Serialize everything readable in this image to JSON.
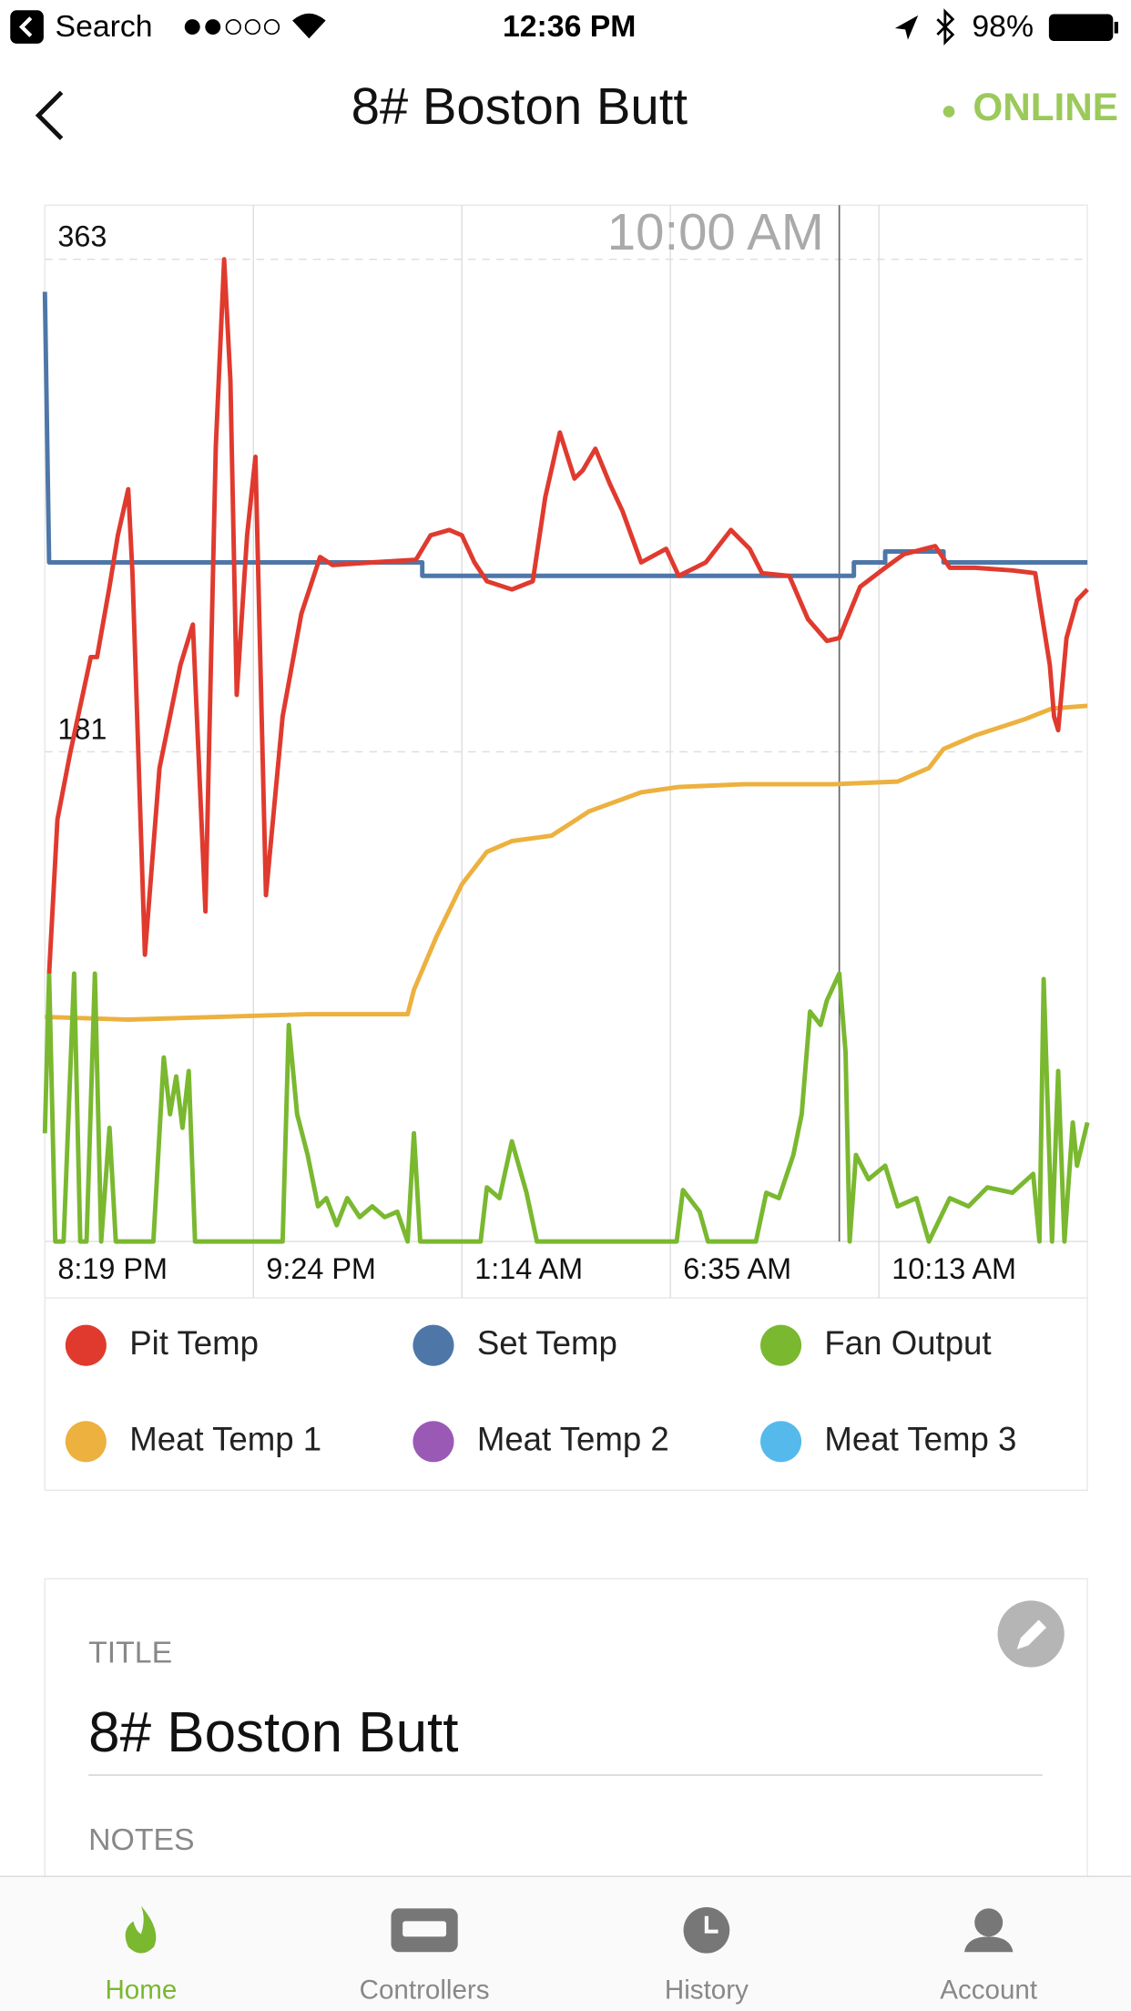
{
  "status_bar": {
    "back_app": "Search",
    "time": "12:36 PM",
    "battery": "98%"
  },
  "header": {
    "title": "8# Boston Butt",
    "status": "ONLINE"
  },
  "chart_data": {
    "type": "line",
    "xlim": [
      0,
      50
    ],
    "ylim": [
      0,
      383
    ],
    "yticks": [
      181,
      363
    ],
    "xticks": [
      {
        "value": 0,
        "label": "8:19 PM"
      },
      {
        "value": 10,
        "label": "9:24 PM"
      },
      {
        "value": 20,
        "label": "1:14 AM"
      },
      {
        "value": 30,
        "label": "6:35 AM"
      },
      {
        "value": 40,
        "label": "10:13 AM"
      }
    ],
    "grid": true,
    "cursor": {
      "x": 38.1,
      "label": "10:00 AM"
    },
    "series": [
      {
        "name": "Pit Temp",
        "color": "#e03a2f",
        "x": [
          0.2,
          0.6,
          1.2,
          2.2,
          2.5,
          3.1,
          3.5,
          4.0,
          4.2,
          4.8,
          5.5,
          6.5,
          7.1,
          7.7,
          8.2,
          8.6,
          8.9,
          9.2,
          9.7,
          10.1,
          10.6,
          11.4,
          12.3,
          13.2,
          13.8,
          15.7,
          17.8,
          18.5,
          19.4,
          20.0,
          20.6,
          21.2,
          22.4,
          23.4,
          24.0,
          24.7,
          25.4,
          25.8,
          26.4,
          27.1,
          27.7,
          28.6,
          29.8,
          30.4,
          31.7,
          32.9,
          33.8,
          34.4,
          35.7,
          36.6,
          37.5,
          38.1,
          39.1,
          40.3,
          41.2,
          42.7,
          43.4,
          44.6,
          46.4,
          47.5,
          48.2,
          48.4,
          48.6,
          49.0,
          49.5,
          50.0
        ],
        "values": [
          99,
          156,
          180,
          216,
          216,
          242,
          261,
          278,
          247,
          106,
          175,
          213,
          228,
          122,
          294,
          363,
          318,
          202,
          261,
          290,
          128,
          194,
          232,
          253,
          250,
          251,
          252,
          261,
          263,
          261,
          251,
          244,
          241,
          244,
          275,
          299,
          282,
          285,
          293,
          280,
          270,
          251,
          256,
          246,
          251,
          263,
          256,
          247,
          246,
          230,
          222,
          223,
          242,
          249,
          254,
          257,
          249,
          249,
          248,
          247,
          213,
          194,
          189,
          223,
          237,
          241
        ]
      },
      {
        "name": "Set Temp",
        "color": "#4e77a8",
        "x": [
          0,
          0.2,
          18.1,
          18.1,
          38.8,
          38.8,
          40.3,
          40.3,
          43.1,
          43.1,
          50
        ],
        "values": [
          351,
          251,
          251,
          246,
          246,
          251,
          251,
          255,
          255,
          251,
          251
        ]
      },
      {
        "name": "Fan Output",
        "color": "#7ab830",
        "x": [
          0,
          0.2,
          0.5,
          0.9,
          1.4,
          1.7,
          2.0,
          2.4,
          2.7,
          3.1,
          3.4,
          5.2,
          5.7,
          6.0,
          6.3,
          6.6,
          6.9,
          7.2,
          11.4,
          11.7,
          12.1,
          12.6,
          13.1,
          13.5,
          14.0,
          14.5,
          15.1,
          15.7,
          16.3,
          16.9,
          17.4,
          17.7,
          18.0,
          20.9,
          21.2,
          21.8,
          22.4,
          23.1,
          23.6,
          30.3,
          30.6,
          31.4,
          31.8,
          34.1,
          34.6,
          35.2,
          35.9,
          36.3,
          36.7,
          37.2,
          37.5,
          37.8,
          38.1,
          38.4,
          38.6,
          38.9,
          39.5,
          40.3,
          40.9,
          41.8,
          42.4,
          43.4,
          44.3,
          45.2,
          46.4,
          47.4,
          47.7,
          47.9,
          48.3,
          48.6,
          48.9,
          49.3,
          49.5,
          50.0
        ],
        "values": [
          40,
          99,
          0,
          0,
          99,
          0,
          0,
          99,
          0,
          42,
          0,
          0,
          68,
          47,
          61,
          42,
          63,
          0,
          0,
          80,
          47,
          32,
          13,
          16,
          6,
          16,
          9,
          13,
          9,
          11,
          0,
          40,
          0,
          0,
          20,
          16,
          37,
          18,
          0,
          0,
          19,
          11,
          0,
          0,
          18,
          16,
          32,
          47,
          85,
          80,
          89,
          94,
          99,
          70,
          0,
          32,
          23,
          28,
          13,
          16,
          0,
          16,
          13,
          20,
          18,
          25,
          0,
          97,
          0,
          63,
          0,
          44,
          28,
          44
        ]
      },
      {
        "name": "Meat Temp 1",
        "color": "#ecb13f",
        "x": [
          0,
          4.0,
          12.6,
          17.4,
          17.7,
          18.8,
          20.0,
          21.2,
          22.4,
          24.3,
          26.1,
          28.6,
          30.4,
          33.5,
          37.8,
          40.9,
          42.4,
          43.1,
          44.6,
          47.0,
          48.3,
          50.0
        ],
        "values": [
          83,
          82,
          84,
          84,
          93,
          113,
          132,
          144,
          148,
          150,
          159,
          166,
          168,
          169,
          169,
          170,
          175,
          182,
          187,
          193,
          197,
          198
        ]
      },
      {
        "name": "Meat Temp 2",
        "color": "#9b59b6",
        "x": [],
        "values": []
      },
      {
        "name": "Meat Temp 3",
        "color": "#56b9ec",
        "x": [],
        "values": []
      }
    ]
  },
  "details": {
    "title_label": "TITLE",
    "title_value": "8# Boston Butt",
    "notes_label": "NOTES"
  },
  "tabs": [
    "Home",
    "Controllers",
    "History",
    "Account"
  ]
}
